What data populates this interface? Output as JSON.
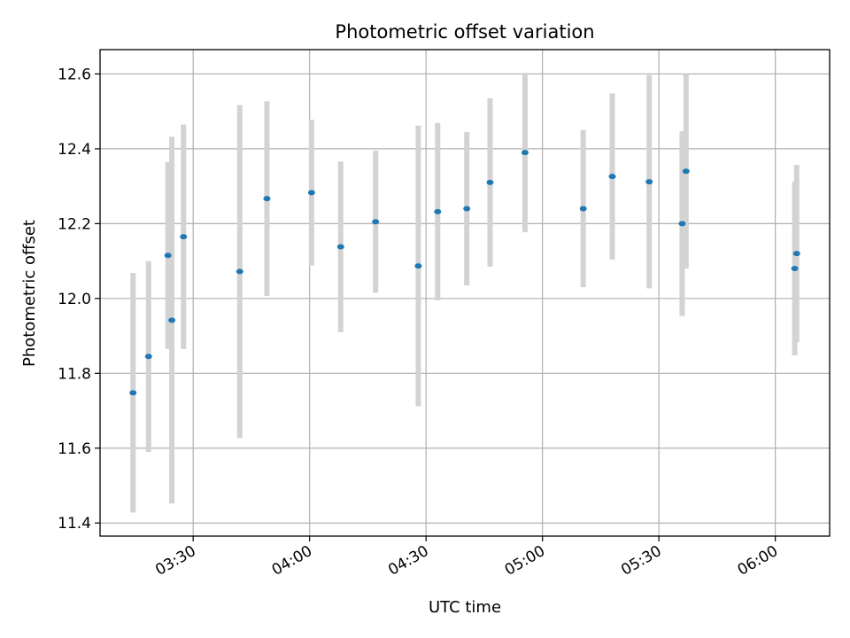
{
  "chart_data": {
    "type": "scatter",
    "title": "Photometric offset variation",
    "xlabel": "UTC time",
    "ylabel": "Photometric offset",
    "x_unit": "UTC time (HH:MM)",
    "xlim": [
      "03:06",
      "06:14"
    ],
    "ylim": [
      11.365,
      12.665
    ],
    "x_ticks": [
      "03:30",
      "04:00",
      "04:30",
      "05:00",
      "05:30",
      "06:00"
    ],
    "y_ticks": [
      11.4,
      11.6,
      11.8,
      12.0,
      12.2,
      12.4,
      12.6
    ],
    "grid": true,
    "legend": "none",
    "colors": {
      "point": "#1f77b4",
      "errorbar": "#d3d3d3"
    },
    "points": [
      {
        "x": "03:14:30",
        "y": 11.748,
        "err": 0.32
      },
      {
        "x": "03:18:30",
        "y": 11.845,
        "err": 0.255
      },
      {
        "x": "03:23:30",
        "y": 12.115,
        "err": 0.25
      },
      {
        "x": "03:24:30",
        "y": 11.942,
        "err": 0.49
      },
      {
        "x": "03:27:30",
        "y": 12.165,
        "err": 0.3
      },
      {
        "x": "03:42:00",
        "y": 12.072,
        "err": 0.445
      },
      {
        "x": "03:49:00",
        "y": 12.267,
        "err": 0.26
      },
      {
        "x": "04:00:30",
        "y": 12.283,
        "err": 0.195
      },
      {
        "x": "04:08:00",
        "y": 12.138,
        "err": 0.228
      },
      {
        "x": "04:17:00",
        "y": 12.205,
        "err": 0.19
      },
      {
        "x": "04:28:00",
        "y": 12.087,
        "err": 0.375
      },
      {
        "x": "04:33:00",
        "y": 12.232,
        "err": 0.237
      },
      {
        "x": "04:40:30",
        "y": 12.24,
        "err": 0.205
      },
      {
        "x": "04:46:30",
        "y": 12.31,
        "err": 0.225
      },
      {
        "x": "04:55:30",
        "y": 12.39,
        "err": 0.213
      },
      {
        "x": "05:10:30",
        "y": 12.24,
        "err": 0.21
      },
      {
        "x": "05:18:00",
        "y": 12.326,
        "err": 0.222
      },
      {
        "x": "05:27:30",
        "y": 12.312,
        "err": 0.285
      },
      {
        "x": "05:36:00",
        "y": 12.2,
        "err": 0.247
      },
      {
        "x": "05:37:00",
        "y": 12.34,
        "err": 0.26
      },
      {
        "x": "06:05:00",
        "y": 12.08,
        "err": 0.232
      },
      {
        "x": "06:05:30",
        "y": 12.12,
        "err": 0.237
      }
    ]
  }
}
